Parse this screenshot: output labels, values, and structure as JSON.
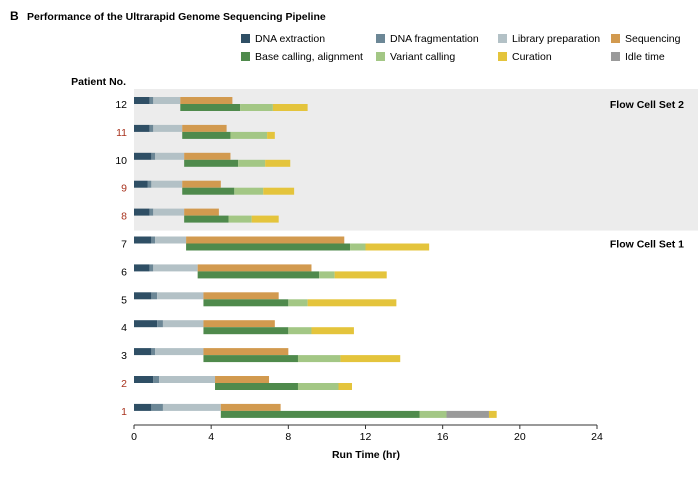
{
  "panel_letter": "B",
  "chart_data": {
    "type": "bar",
    "title": "Performance of the Ultrarapid Genome Sequencing Pipeline",
    "xlabel": "Run Time (hr)",
    "ylabel": "Patient No.",
    "xlim": [
      0,
      24
    ],
    "xticks": [
      "0",
      "4",
      "8",
      "12",
      "16",
      "20",
      "24"
    ],
    "grid": false,
    "legend_position": "top-right",
    "colors": {
      "dna_extraction": "#2f4f65",
      "dna_fragmentation": "#6c8796",
      "library_preparation": "#b3c1c6",
      "sequencing": "#d29a4f",
      "base_calling": "#4f8a4c",
      "variant_calling": "#a3c785",
      "curation": "#e4c43c",
      "idle_time": "#9a9a9a",
      "highlight_label": "#a8321e",
      "shade": "#ececec"
    },
    "legend": [
      {
        "key": "dna_extraction",
        "label": "DNA extraction"
      },
      {
        "key": "dna_fragmentation",
        "label": "DNA fragmentation"
      },
      {
        "key": "library_preparation",
        "label": "Library preparation"
      },
      {
        "key": "sequencing",
        "label": "Sequencing"
      },
      {
        "key": "base_calling",
        "label": "Base calling, alignment"
      },
      {
        "key": "variant_calling",
        "label": "Variant calling"
      },
      {
        "key": "curation",
        "label": "Curation"
      },
      {
        "key": "idle_time",
        "label": "Idle time"
      }
    ],
    "groups": [
      {
        "label": "Flow Cell Set 2",
        "patients": [
          "12",
          "11",
          "10",
          "9",
          "8"
        ]
      },
      {
        "label": "Flow Cell Set 1",
        "patients": [
          "7",
          "6",
          "5",
          "4",
          "3",
          "2",
          "1"
        ]
      }
    ],
    "patients": [
      {
        "label": "12",
        "highlight": false,
        "top": [
          {
            "key": "dna_extraction",
            "start": 0.0,
            "end": 0.8
          },
          {
            "key": "dna_fragmentation",
            "start": 0.8,
            "end": 1.0
          },
          {
            "key": "library_preparation",
            "start": 1.0,
            "end": 2.4
          },
          {
            "key": "sequencing",
            "start": 2.4,
            "end": 5.1
          }
        ],
        "bottom": [
          {
            "key": "base_calling",
            "start": 2.4,
            "end": 5.5
          },
          {
            "key": "variant_calling",
            "start": 5.5,
            "end": 7.2
          },
          {
            "key": "curation",
            "start": 7.2,
            "end": 9.0
          }
        ]
      },
      {
        "label": "11",
        "highlight": true,
        "top": [
          {
            "key": "dna_extraction",
            "start": 0.0,
            "end": 0.8
          },
          {
            "key": "dna_fragmentation",
            "start": 0.8,
            "end": 1.0
          },
          {
            "key": "library_preparation",
            "start": 1.0,
            "end": 2.5
          },
          {
            "key": "sequencing",
            "start": 2.5,
            "end": 4.8
          }
        ],
        "bottom": [
          {
            "key": "base_calling",
            "start": 2.5,
            "end": 5.0
          },
          {
            "key": "variant_calling",
            "start": 5.0,
            "end": 6.9
          },
          {
            "key": "curation",
            "start": 6.9,
            "end": 7.3
          }
        ]
      },
      {
        "label": "10",
        "highlight": false,
        "top": [
          {
            "key": "dna_extraction",
            "start": 0.0,
            "end": 0.9
          },
          {
            "key": "dna_fragmentation",
            "start": 0.9,
            "end": 1.1
          },
          {
            "key": "library_preparation",
            "start": 1.1,
            "end": 2.6
          },
          {
            "key": "sequencing",
            "start": 2.6,
            "end": 5.0
          }
        ],
        "bottom": [
          {
            "key": "base_calling",
            "start": 2.6,
            "end": 5.4
          },
          {
            "key": "variant_calling",
            "start": 5.4,
            "end": 6.8
          },
          {
            "key": "curation",
            "start": 6.8,
            "end": 8.1
          }
        ]
      },
      {
        "label": "9",
        "highlight": true,
        "top": [
          {
            "key": "dna_extraction",
            "start": 0.0,
            "end": 0.7
          },
          {
            "key": "dna_fragmentation",
            "start": 0.7,
            "end": 0.9
          },
          {
            "key": "library_preparation",
            "start": 0.9,
            "end": 2.5
          },
          {
            "key": "sequencing",
            "start": 2.5,
            "end": 4.5
          }
        ],
        "bottom": [
          {
            "key": "base_calling",
            "start": 2.5,
            "end": 5.2
          },
          {
            "key": "variant_calling",
            "start": 5.2,
            "end": 6.7
          },
          {
            "key": "curation",
            "start": 6.7,
            "end": 8.3
          }
        ]
      },
      {
        "label": "8",
        "highlight": true,
        "top": [
          {
            "key": "dna_extraction",
            "start": 0.0,
            "end": 0.8
          },
          {
            "key": "dna_fragmentation",
            "start": 0.8,
            "end": 1.0
          },
          {
            "key": "library_preparation",
            "start": 1.0,
            "end": 2.6
          },
          {
            "key": "sequencing",
            "start": 2.6,
            "end": 4.4
          }
        ],
        "bottom": [
          {
            "key": "base_calling",
            "start": 2.6,
            "end": 4.9
          },
          {
            "key": "variant_calling",
            "start": 4.9,
            "end": 6.1
          },
          {
            "key": "curation",
            "start": 6.1,
            "end": 7.5
          }
        ]
      },
      {
        "label": "7",
        "highlight": false,
        "top": [
          {
            "key": "dna_extraction",
            "start": 0.0,
            "end": 0.9
          },
          {
            "key": "dna_fragmentation",
            "start": 0.9,
            "end": 1.1
          },
          {
            "key": "library_preparation",
            "start": 1.1,
            "end": 2.7
          },
          {
            "key": "sequencing",
            "start": 2.7,
            "end": 10.9
          }
        ],
        "bottom": [
          {
            "key": "base_calling",
            "start": 2.7,
            "end": 11.2
          },
          {
            "key": "variant_calling",
            "start": 11.2,
            "end": 12.0
          },
          {
            "key": "curation",
            "start": 12.0,
            "end": 15.3
          }
        ]
      },
      {
        "label": "6",
        "highlight": false,
        "top": [
          {
            "key": "dna_extraction",
            "start": 0.0,
            "end": 0.8
          },
          {
            "key": "dna_fragmentation",
            "start": 0.8,
            "end": 1.0
          },
          {
            "key": "library_preparation",
            "start": 1.0,
            "end": 3.3
          },
          {
            "key": "sequencing",
            "start": 3.3,
            "end": 9.2
          }
        ],
        "bottom": [
          {
            "key": "base_calling",
            "start": 3.3,
            "end": 9.6
          },
          {
            "key": "variant_calling",
            "start": 9.6,
            "end": 10.4
          },
          {
            "key": "curation",
            "start": 10.4,
            "end": 13.1
          }
        ]
      },
      {
        "label": "5",
        "highlight": false,
        "top": [
          {
            "key": "dna_extraction",
            "start": 0.0,
            "end": 0.9
          },
          {
            "key": "dna_fragmentation",
            "start": 0.9,
            "end": 1.2
          },
          {
            "key": "library_preparation",
            "start": 1.2,
            "end": 3.6
          },
          {
            "key": "sequencing",
            "start": 3.6,
            "end": 7.5
          }
        ],
        "bottom": [
          {
            "key": "base_calling",
            "start": 3.6,
            "end": 8.0
          },
          {
            "key": "variant_calling",
            "start": 8.0,
            "end": 9.0
          },
          {
            "key": "curation",
            "start": 9.0,
            "end": 13.6
          }
        ]
      },
      {
        "label": "4",
        "highlight": false,
        "top": [
          {
            "key": "dna_extraction",
            "start": 0.0,
            "end": 1.2
          },
          {
            "key": "dna_fragmentation",
            "start": 1.2,
            "end": 1.5
          },
          {
            "key": "library_preparation",
            "start": 1.5,
            "end": 3.6
          },
          {
            "key": "sequencing",
            "start": 3.6,
            "end": 7.3
          }
        ],
        "bottom": [
          {
            "key": "base_calling",
            "start": 3.6,
            "end": 8.0
          },
          {
            "key": "variant_calling",
            "start": 8.0,
            "end": 9.2
          },
          {
            "key": "curation",
            "start": 9.2,
            "end": 11.4
          }
        ]
      },
      {
        "label": "3",
        "highlight": false,
        "top": [
          {
            "key": "dna_extraction",
            "start": 0.0,
            "end": 0.9
          },
          {
            "key": "dna_fragmentation",
            "start": 0.9,
            "end": 1.1
          },
          {
            "key": "library_preparation",
            "start": 1.1,
            "end": 3.6
          },
          {
            "key": "sequencing",
            "start": 3.6,
            "end": 8.0
          }
        ],
        "bottom": [
          {
            "key": "base_calling",
            "start": 3.6,
            "end": 8.5
          },
          {
            "key": "variant_calling",
            "start": 8.5,
            "end": 10.7
          },
          {
            "key": "curation",
            "start": 10.7,
            "end": 13.8
          }
        ]
      },
      {
        "label": "2",
        "highlight": true,
        "top": [
          {
            "key": "dna_extraction",
            "start": 0.0,
            "end": 1.0
          },
          {
            "key": "dna_fragmentation",
            "start": 1.0,
            "end": 1.3
          },
          {
            "key": "library_preparation",
            "start": 1.3,
            "end": 4.2
          },
          {
            "key": "sequencing",
            "start": 4.2,
            "end": 7.0
          }
        ],
        "bottom": [
          {
            "key": "base_calling",
            "start": 4.2,
            "end": 8.5
          },
          {
            "key": "variant_calling",
            "start": 8.5,
            "end": 10.6
          },
          {
            "key": "curation",
            "start": 10.6,
            "end": 11.3
          }
        ]
      },
      {
        "label": "1",
        "highlight": true,
        "top": [
          {
            "key": "dna_extraction",
            "start": 0.0,
            "end": 0.9
          },
          {
            "key": "dna_fragmentation",
            "start": 0.9,
            "end": 1.5
          },
          {
            "key": "library_preparation",
            "start": 1.5,
            "end": 4.5
          },
          {
            "key": "sequencing",
            "start": 4.5,
            "end": 7.6
          }
        ],
        "bottom": [
          {
            "key": "base_calling",
            "start": 4.5,
            "end": 14.8
          },
          {
            "key": "variant_calling",
            "start": 14.8,
            "end": 16.2
          },
          {
            "key": "idle_time",
            "start": 16.2,
            "end": 18.4
          },
          {
            "key": "curation",
            "start": 18.4,
            "end": 18.8
          }
        ]
      }
    ]
  }
}
